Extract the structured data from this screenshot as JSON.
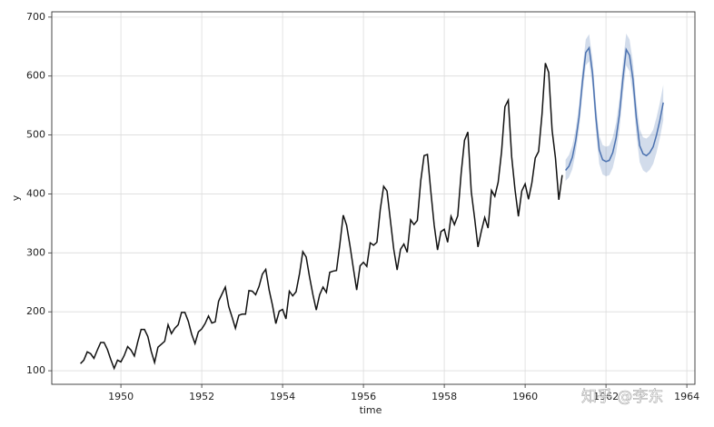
{
  "chart_data": {
    "type": "line",
    "xlabel": "time",
    "ylabel": "y",
    "watermark": "知乎 @李东",
    "xlim": [
      1948.29,
      1964.2
    ],
    "ylim": [
      77,
      709
    ],
    "xticks": [
      1950,
      1952,
      1954,
      1956,
      1958,
      1960,
      1962,
      1964
    ],
    "yticks": [
      100,
      200,
      300,
      400,
      500,
      600,
      700
    ],
    "grid": true,
    "series": [
      {
        "color": "#111111",
        "x": [
          1949,
          1949.083,
          1949.167,
          1949.25,
          1949.333,
          1949.417,
          1949.5,
          1949.583,
          1949.667,
          1949.75,
          1949.833,
          1949.917,
          1950,
          1950.083,
          1950.167,
          1950.25,
          1950.333,
          1950.417,
          1950.5,
          1950.583,
          1950.667,
          1950.75,
          1950.833,
          1950.917,
          1951,
          1951.083,
          1951.167,
          1951.25,
          1951.333,
          1951.417,
          1951.5,
          1951.583,
          1951.667,
          1951.75,
          1951.833,
          1951.917,
          1952,
          1952.083,
          1952.167,
          1952.25,
          1952.333,
          1952.417,
          1952.5,
          1952.583,
          1952.667,
          1952.75,
          1952.833,
          1952.917,
          1953,
          1953.083,
          1953.167,
          1953.25,
          1953.333,
          1953.417,
          1953.5,
          1953.583,
          1953.667,
          1953.75,
          1953.833,
          1953.917,
          1954,
          1954.083,
          1954.167,
          1954.25,
          1954.333,
          1954.417,
          1954.5,
          1954.583,
          1954.667,
          1954.75,
          1954.833,
          1954.917,
          1955,
          1955.083,
          1955.167,
          1955.25,
          1955.333,
          1955.417,
          1955.5,
          1955.583,
          1955.667,
          1955.75,
          1955.833,
          1955.917,
          1956,
          1956.083,
          1956.167,
          1956.25,
          1956.333,
          1956.417,
          1956.5,
          1956.583,
          1956.667,
          1956.75,
          1956.833,
          1956.917,
          1957,
          1957.083,
          1957.167,
          1957.25,
          1957.333,
          1957.417,
          1957.5,
          1957.583,
          1957.667,
          1957.75,
          1957.833,
          1957.917,
          1958,
          1958.083,
          1958.167,
          1958.25,
          1958.333,
          1958.417,
          1958.5,
          1958.583,
          1958.667,
          1958.75,
          1958.833,
          1958.917,
          1959,
          1959.083,
          1959.167,
          1959.25,
          1959.333,
          1959.417,
          1959.5,
          1959.583,
          1959.667,
          1959.75,
          1959.833,
          1959.917,
          1960,
          1960.083,
          1960.167,
          1960.25,
          1960.333,
          1960.417,
          1960.5,
          1960.583,
          1960.667,
          1960.75,
          1960.833,
          1960.917
        ],
        "values": [
          112,
          118,
          132,
          129,
          121,
          135,
          148,
          148,
          136,
          119,
          104,
          118,
          115,
          126,
          141,
          135,
          125,
          149,
          170,
          170,
          158,
          133,
          114,
          140,
          145,
          150,
          178,
          163,
          172,
          178,
          199,
          199,
          184,
          162,
          146,
          166,
          171,
          180,
          193,
          181,
          183,
          218,
          230,
          242,
          209,
          191,
          172,
          194,
          196,
          196,
          236,
          235,
          229,
          243,
          264,
          272,
          237,
          211,
          180,
          201,
          204,
          188,
          235,
          227,
          234,
          264,
          302,
          293,
          259,
          229,
          203,
          229,
          242,
          233,
          267,
          269,
          270,
          315,
          364,
          347,
          312,
          274,
          237,
          278,
          284,
          277,
          317,
          313,
          318,
          374,
          413,
          405,
          355,
          306,
          271,
          306,
          315,
          301,
          356,
          348,
          355,
          422,
          465,
          467,
          404,
          347,
          305,
          336,
          340,
          318,
          362,
          348,
          363,
          435,
          491,
          505,
          404,
          359,
          310,
          337,
          360,
          342,
          406,
          396,
          420,
          472,
          548,
          559,
          463,
          407,
          362,
          405,
          417,
          391,
          419,
          461,
          472,
          535,
          622,
          606,
          508,
          461,
          390,
          432
        ]
      },
      {
        "color": "#4c72b0",
        "x": [
          1961,
          1961.083,
          1961.167,
          1961.25,
          1961.333,
          1961.417,
          1961.5,
          1961.583,
          1961.667,
          1961.75,
          1961.833,
          1961.917,
          1962,
          1962.083,
          1962.167,
          1962.25,
          1962.333,
          1962.417,
          1962.5,
          1962.583,
          1962.667,
          1962.75,
          1962.833,
          1962.917,
          1963,
          1963.083,
          1963.167,
          1963.25,
          1963.333,
          1963.417
        ],
        "values": [
          440,
          447,
          462,
          490,
          530,
          590,
          640,
          648,
          605,
          530,
          475,
          458,
          455,
          457,
          470,
          495,
          535,
          595,
          645,
          635,
          595,
          530,
          482,
          468,
          465,
          470,
          480,
          500,
          525,
          555
        ],
        "upper": [
          458,
          466,
          482,
          510,
          551,
          612,
          662,
          671,
          628,
          554,
          499,
          483,
          480,
          482,
          496,
          521,
          561,
          622,
          672,
          662,
          623,
          558,
          510,
          496,
          494,
          499,
          509,
          530,
          555,
          585
        ],
        "lower": [
          422,
          428,
          442,
          470,
          509,
          568,
          618,
          625,
          582,
          506,
          451,
          433,
          430,
          432,
          444,
          469,
          509,
          568,
          618,
          608,
          567,
          502,
          454,
          440,
          436,
          441,
          451,
          470,
          495,
          525
        ]
      }
    ]
  }
}
